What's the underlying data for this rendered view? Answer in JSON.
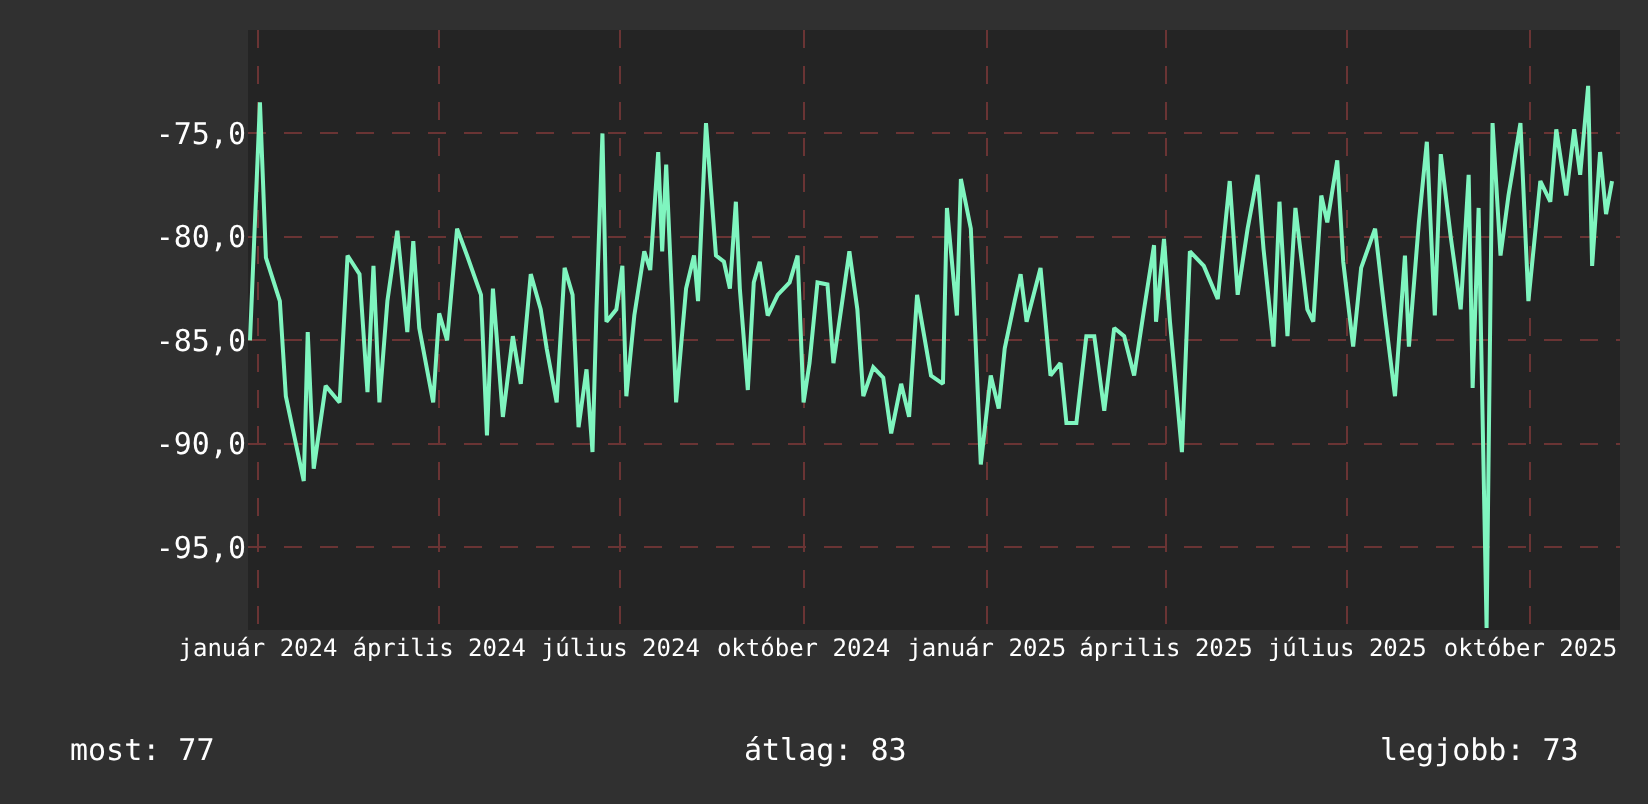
{
  "chart_data": {
    "type": "line",
    "x": [
      "2023-12-28",
      "2024-01-02",
      "2024-01-05",
      "2024-01-12",
      "2024-01-15",
      "2024-01-24",
      "2024-01-26",
      "2024-01-29",
      "2024-02-04",
      "2024-02-11",
      "2024-02-15",
      "2024-02-21",
      "2024-02-25",
      "2024-02-28",
      "2024-03-02",
      "2024-03-06",
      "2024-03-11",
      "2024-03-16",
      "2024-03-19",
      "2024-03-22",
      "2024-03-29",
      "2024-04-01",
      "2024-04-05",
      "2024-04-10",
      "2024-04-15",
      "2024-04-22",
      "2024-04-25",
      "2024-04-28",
      "2024-05-03",
      "2024-05-08",
      "2024-05-12",
      "2024-05-17",
      "2024-05-22",
      "2024-05-25",
      "2024-05-30",
      "2024-06-03",
      "2024-06-07",
      "2024-06-10",
      "2024-06-14",
      "2024-06-17",
      "2024-06-19",
      "2024-06-22",
      "2024-06-24",
      "2024-06-29",
      "2024-07-02",
      "2024-07-04",
      "2024-07-08",
      "2024-07-13",
      "2024-07-16",
      "2024-07-20",
      "2024-07-22",
      "2024-07-24",
      "2024-07-27",
      "2024-07-29",
      "2024-08-03",
      "2024-08-07",
      "2024-08-09",
      "2024-08-13",
      "2024-08-18",
      "2024-08-22",
      "2024-08-25",
      "2024-08-28",
      "2024-08-30",
      "2024-09-03",
      "2024-09-06",
      "2024-09-09",
      "2024-09-13",
      "2024-09-18",
      "2024-09-24",
      "2024-09-28",
      "2024-10-01",
      "2024-10-04",
      "2024-10-08",
      "2024-10-13",
      "2024-10-16",
      "2024-10-24",
      "2024-10-28",
      "2024-10-31",
      "2024-11-05",
      "2024-11-10",
      "2024-11-14",
      "2024-11-19",
      "2024-11-23",
      "2024-11-27",
      "2024-12-04",
      "2024-12-10",
      "2024-12-12",
      "2024-12-17",
      "2024-12-19",
      "2024-12-24",
      "2024-12-29",
      "2025-01-03",
      "2025-01-07",
      "2025-01-10",
      "2025-01-15",
      "2025-01-18",
      "2025-01-21",
      "2025-01-28",
      "2025-02-02",
      "2025-02-07",
      "2025-02-10",
      "2025-02-15",
      "2025-02-20",
      "2025-02-24",
      "2025-03-01",
      "2025-03-06",
      "2025-03-11",
      "2025-03-16",
      "2025-03-21",
      "2025-03-26",
      "2025-03-27",
      "2025-03-31",
      "2025-04-03",
      "2025-04-09",
      "2025-04-13",
      "2025-04-20",
      "2025-04-27",
      "2025-05-03",
      "2025-05-07",
      "2025-05-12",
      "2025-05-17",
      "2025-05-20",
      "2025-05-25",
      "2025-05-28",
      "2025-06-01",
      "2025-06-05",
      "2025-06-11",
      "2025-06-14",
      "2025-06-18",
      "2025-06-21",
      "2025-06-26",
      "2025-06-29",
      "2025-07-04",
      "2025-07-08",
      "2025-07-15",
      "2025-07-20",
      "2025-07-25",
      "2025-07-30",
      "2025-08-01",
      "2025-08-06",
      "2025-08-10",
      "2025-08-14",
      "2025-08-17",
      "2025-08-22",
      "2025-08-27",
      "2025-08-31",
      "2025-09-02",
      "2025-09-05",
      "2025-09-09",
      "2025-09-12",
      "2025-09-16",
      "2025-09-20",
      "2025-09-26",
      "2025-09-30",
      "2025-10-06",
      "2025-10-11",
      "2025-10-14",
      "2025-10-19",
      "2025-10-23",
      "2025-10-26",
      "2025-10-30",
      "2025-11-01",
      "2025-11-05",
      "2025-11-08",
      "2025-11-11"
    ],
    "series": [
      {
        "color": "#7ff5bf",
        "values": [
          -85.0,
          -73.5,
          -81.0,
          -83.1,
          -87.7,
          -91.8,
          -84.6,
          -91.2,
          -87.2,
          -88.0,
          -80.9,
          -81.8,
          -87.5,
          -81.4,
          -88.0,
          -83.1,
          -79.7,
          -84.6,
          -80.2,
          -84.4,
          -88.0,
          -83.7,
          -85.0,
          -79.6,
          -80.9,
          -82.8,
          -89.6,
          -82.5,
          -88.7,
          -84.8,
          -87.1,
          -81.8,
          -83.5,
          -85.4,
          -88.0,
          -81.5,
          -82.8,
          -89.2,
          -86.4,
          -90.4,
          -83.5,
          -75.0,
          -84.1,
          -83.5,
          -81.4,
          -87.7,
          -83.8,
          -80.7,
          -81.6,
          -75.9,
          -80.7,
          -76.5,
          -83.1,
          -88.0,
          -82.5,
          -80.9,
          -83.1,
          -74.5,
          -80.9,
          -81.2,
          -82.5,
          -78.3,
          -82.5,
          -87.4,
          -82.2,
          -81.2,
          -83.8,
          -82.8,
          -82.2,
          -80.9,
          -88.0,
          -86.1,
          -82.2,
          -82.3,
          -86.1,
          -80.7,
          -83.5,
          -87.7,
          -86.3,
          -86.8,
          -89.5,
          -87.1,
          -88.7,
          -82.8,
          -86.7,
          -87.1,
          -78.6,
          -83.8,
          -77.2,
          -79.6,
          -91.0,
          -86.7,
          -88.3,
          -85.4,
          -83.1,
          -81.8,
          -84.1,
          -81.5,
          -86.7,
          -86.1,
          -89.0,
          -89.0,
          -84.8,
          -84.8,
          -88.4,
          -84.4,
          -84.8,
          -86.7,
          -83.5,
          -80.4,
          -84.1,
          -80.1,
          -84.1,
          -90.4,
          -80.7,
          -81.4,
          -83.0,
          -77.3,
          -82.8,
          -79.6,
          -77.0,
          -80.6,
          -85.3,
          -78.3,
          -84.8,
          -78.6,
          -83.5,
          -84.1,
          -78.0,
          -79.3,
          -76.3,
          -81.2,
          -85.3,
          -81.5,
          -79.6,
          -83.8,
          -87.7,
          -80.9,
          -85.3,
          -79.3,
          -75.4,
          -83.8,
          -76.0,
          -80.0,
          -83.5,
          -77.0,
          -87.3,
          -78.6,
          -98.9,
          -74.5,
          -80.9,
          -78.0,
          -74.5,
          -83.1,
          -77.3,
          -78.3,
          -74.8,
          -78.0,
          -74.8,
          -77.0,
          -72.7,
          -81.4,
          -75.9,
          -78.9,
          -77.3
        ]
      }
    ],
    "xlim": [
      "2023-12-27",
      "2025-11-15"
    ],
    "xticks": [
      {
        "value": "2024-01-01",
        "label": "január 2024"
      },
      {
        "value": "2024-04-01",
        "label": "április 2024"
      },
      {
        "value": "2024-07-01",
        "label": "július 2024"
      },
      {
        "value": "2024-10-01",
        "label": "október 2024"
      },
      {
        "value": "2025-01-01",
        "label": "január 2025"
      },
      {
        "value": "2025-04-01",
        "label": "április 2025"
      },
      {
        "value": "2025-07-01",
        "label": "július 2025"
      },
      {
        "value": "2025-10-01",
        "label": "október 2025"
      }
    ],
    "ylim": [
      -99,
      -70
    ],
    "yticks": [
      {
        "value": -75,
        "label": "-75,0"
      },
      {
        "value": -80,
        "label": "-80,0"
      },
      {
        "value": -85,
        "label": "-85,0"
      },
      {
        "value": -90,
        "label": "-90,0"
      },
      {
        "value": -95,
        "label": "-95,0"
      }
    ],
    "grid": true,
    "legend": false,
    "line_style": "solid",
    "marker": "none",
    "annotations": [
      "most: 77",
      "átlag: 83",
      "legjobb: 73"
    ]
  }
}
